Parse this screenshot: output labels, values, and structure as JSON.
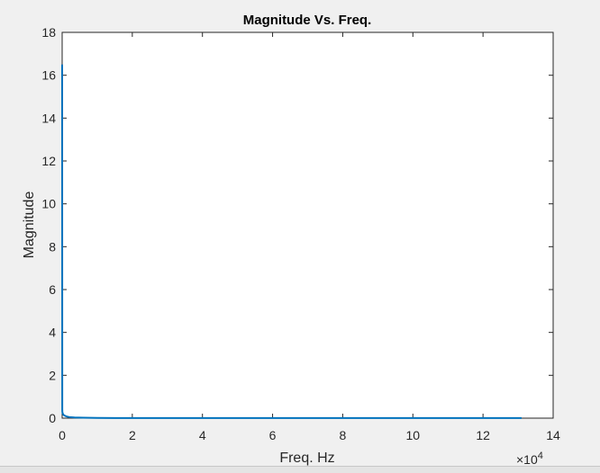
{
  "chart_data": {
    "type": "line",
    "title": "Magnitude Vs. Freq.",
    "xlabel": "Freq. Hz",
    "ylabel": "Magnitude",
    "x_exponent_label": "×10",
    "x_exponent_power": "4",
    "xlim": [
      0,
      14
    ],
    "ylim": [
      0,
      18
    ],
    "xticks": [
      "0",
      "2",
      "4",
      "6",
      "8",
      "10",
      "12",
      "14"
    ],
    "yticks": [
      "0",
      "2",
      "4",
      "6",
      "8",
      "10",
      "12",
      "14",
      "16",
      "18"
    ],
    "grid": false,
    "line_color": "#0072bd",
    "series": [
      {
        "x": [
          0,
          0.003,
          0.006,
          0.01,
          0.02,
          0.04,
          0.07,
          0.12,
          0.2,
          0.35,
          0.6,
          1,
          2,
          4,
          6,
          8,
          10,
          12,
          13.1
        ],
        "y": [
          16.5,
          0.4,
          0.3,
          0.25,
          0.2,
          0.15,
          0.12,
          0.08,
          0.05,
          0.03,
          0.02,
          0.01,
          0.005,
          0.005,
          0.005,
          0.005,
          0.005,
          0.005,
          0.005
        ]
      }
    ]
  }
}
